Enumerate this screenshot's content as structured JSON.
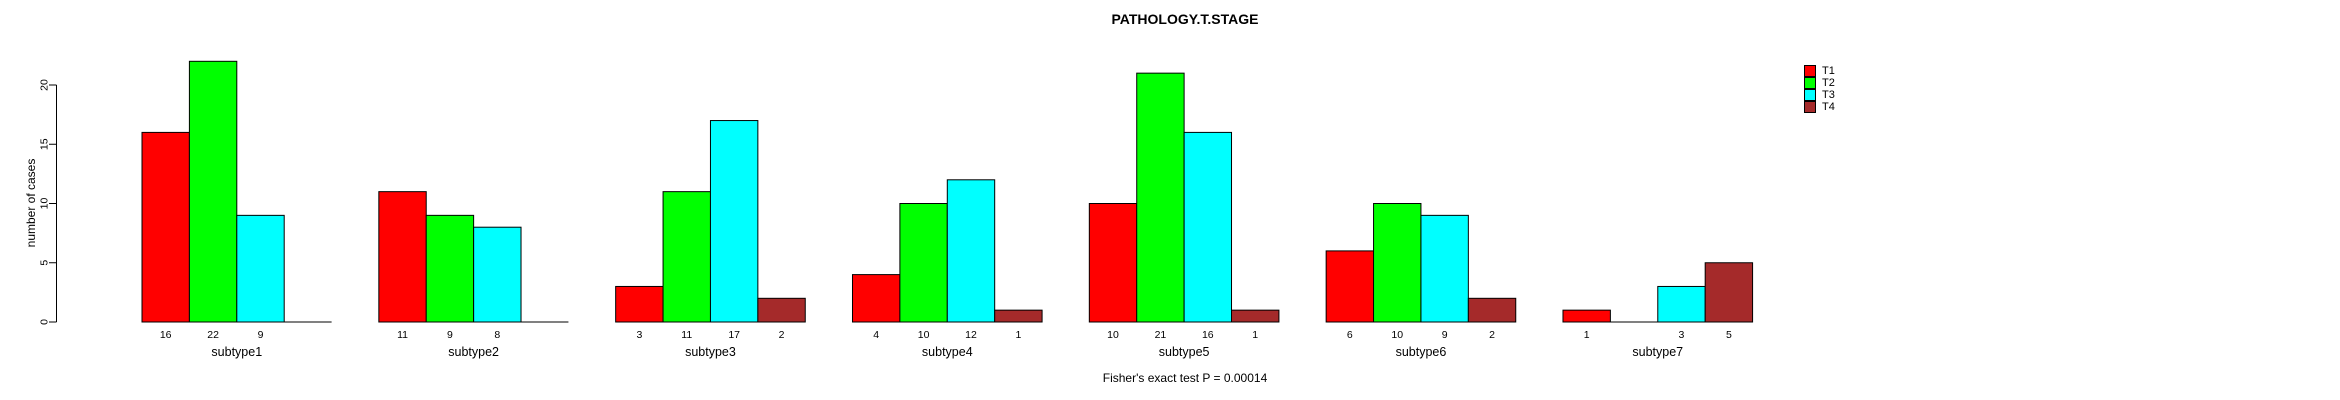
{
  "chart_data": {
    "type": "bar",
    "title": "PATHOLOGY.T.STAGE",
    "xlabel": "",
    "ylabel": "number of cases",
    "caption": "Fisher's exact test P = 0.00014",
    "categories": [
      "subtype1",
      "subtype2",
      "subtype3",
      "subtype4",
      "subtype5",
      "subtype6",
      "subtype7"
    ],
    "series": [
      {
        "name": "T1",
        "color": "#FF0000",
        "values": [
          16,
          11,
          3,
          4,
          10,
          6,
          1
        ]
      },
      {
        "name": "T2",
        "color": "#00FF00",
        "values": [
          22,
          9,
          11,
          10,
          21,
          10,
          0
        ]
      },
      {
        "name": "T3",
        "color": "#00FFFF",
        "values": [
          9,
          8,
          17,
          12,
          16,
          9,
          3
        ]
      },
      {
        "name": "T4",
        "color": "#A52A2A",
        "values": [
          0,
          0,
          2,
          1,
          1,
          2,
          5
        ]
      }
    ],
    "bar_value_labels_shown": true,
    "zero_values_hidden": true,
    "yticks": [
      0,
      5,
      10,
      15,
      20
    ],
    "ylim": [
      0,
      22
    ],
    "grid": false,
    "legend_position": "top-right",
    "bar_border_color": "#000000",
    "background_color": "#FFFFFF"
  }
}
